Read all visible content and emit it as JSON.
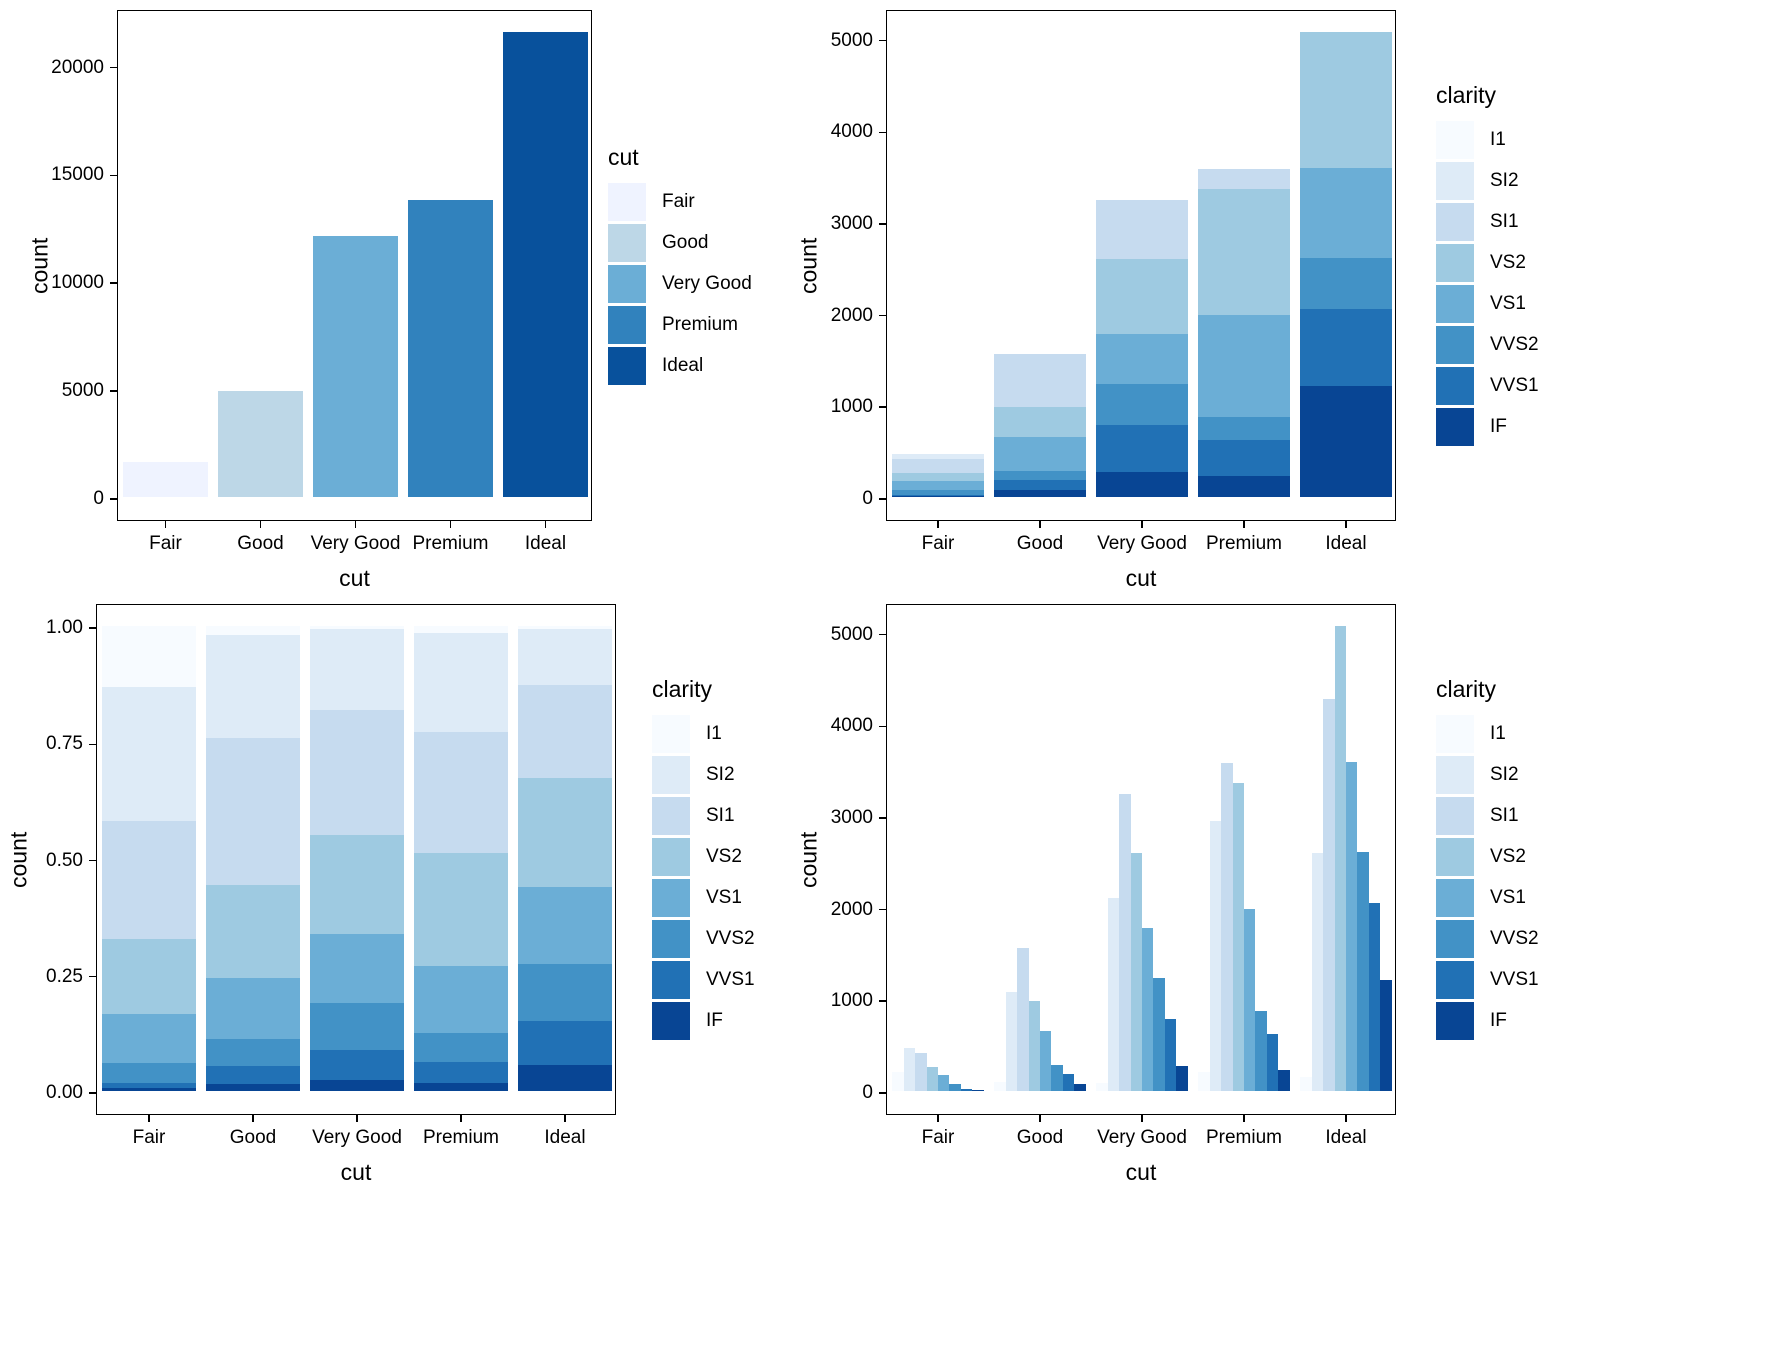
{
  "figure": {
    "background": "#FFFFFF",
    "description": "2x2 grid of bar charts of diamond counts by cut and clarity"
  },
  "palette": {
    "cut_blues_5": [
      "#EFF3FF",
      "#BDD7E7",
      "#6BAED6",
      "#3182BD",
      "#08519C"
    ],
    "clarity_blues_8": [
      "#F7FBFF",
      "#DEEBF7",
      "#C6DBEF",
      "#9ECAE1",
      "#6BAED6",
      "#4292C6",
      "#2171B5",
      "#084594"
    ]
  },
  "chart_data": [
    {
      "type": "bar",
      "panel_position": "top-left",
      "xlabel": "cut",
      "ylabel": "count",
      "legend_title": "cut",
      "legend_position": "right",
      "grid": false,
      "categories": [
        "Fair",
        "Good",
        "Very Good",
        "Premium",
        "Ideal"
      ],
      "values": [
        1610,
        4906,
        12082,
        13791,
        21551
      ],
      "colors": [
        "#EFF3FF",
        "#BDD7E7",
        "#6BAED6",
        "#3182BD",
        "#08519C"
      ],
      "y_data_max": 21551,
      "ylim": [
        0,
        21551
      ],
      "y_ticks": [
        {
          "value": 0,
          "label": "0"
        },
        {
          "value": 5000,
          "label": "5000"
        },
        {
          "value": 10000,
          "label": "10000"
        },
        {
          "value": 15000,
          "label": "15000"
        },
        {
          "value": 20000,
          "label": "20000"
        }
      ]
    },
    {
      "type": "overlay",
      "panel_position": "top-right",
      "xlabel": "cut",
      "ylabel": "count",
      "legend_title": "clarity",
      "legend_position": "right",
      "grid": false,
      "categories": [
        "Fair",
        "Good",
        "Very Good",
        "Premium",
        "Ideal"
      ],
      "series": [
        {
          "name": "I1",
          "color": "#F7FBFF",
          "values": [
            210,
            96,
            84,
            205,
            146
          ]
        },
        {
          "name": "SI2",
          "color": "#DEEBF7",
          "values": [
            466,
            1081,
            2100,
            2949,
            2598
          ]
        },
        {
          "name": "SI1",
          "color": "#C6DBEF",
          "values": [
            408,
            1560,
            3240,
            3575,
            4282
          ]
        },
        {
          "name": "VS2",
          "color": "#9ECAE1",
          "values": [
            261,
            978,
            2591,
            3357,
            5071
          ]
        },
        {
          "name": "VS1",
          "color": "#6BAED6",
          "values": [
            170,
            648,
            1775,
            1989,
            3589
          ]
        },
        {
          "name": "VVS2",
          "color": "#4292C6",
          "values": [
            69,
            286,
            1235,
            870,
            2606
          ]
        },
        {
          "name": "VVS1",
          "color": "#2171B5",
          "values": [
            17,
            186,
            789,
            616,
            2047
          ]
        },
        {
          "name": "IF",
          "color": "#084594",
          "values": [
            9,
            71,
            268,
            230,
            1212
          ]
        }
      ],
      "y_data_max": 5071,
      "ylim": [
        0,
        5071
      ],
      "y_ticks": [
        {
          "value": 0,
          "label": "0"
        },
        {
          "value": 1000,
          "label": "1000"
        },
        {
          "value": 2000,
          "label": "2000"
        },
        {
          "value": 3000,
          "label": "3000"
        },
        {
          "value": 4000,
          "label": "4000"
        },
        {
          "value": 5000,
          "label": "5000"
        }
      ]
    },
    {
      "type": "fill",
      "panel_position": "bottom-left",
      "xlabel": "cut",
      "ylabel": "count",
      "legend_title": "clarity",
      "legend_position": "right",
      "grid": false,
      "categories": [
        "Fair",
        "Good",
        "Very Good",
        "Premium",
        "Ideal"
      ],
      "series": [
        {
          "name": "I1",
          "color": "#F7FBFF",
          "values": [
            210,
            96,
            84,
            205,
            146
          ]
        },
        {
          "name": "SI2",
          "color": "#DEEBF7",
          "values": [
            466,
            1081,
            2100,
            2949,
            2598
          ]
        },
        {
          "name": "SI1",
          "color": "#C6DBEF",
          "values": [
            408,
            1560,
            3240,
            3575,
            4282
          ]
        },
        {
          "name": "VS2",
          "color": "#9ECAE1",
          "values": [
            261,
            978,
            2591,
            3357,
            5071
          ]
        },
        {
          "name": "VS1",
          "color": "#6BAED6",
          "values": [
            170,
            648,
            1775,
            1989,
            3589
          ]
        },
        {
          "name": "VVS2",
          "color": "#4292C6",
          "values": [
            69,
            286,
            1235,
            870,
            2606
          ]
        },
        {
          "name": "VVS1",
          "color": "#2171B5",
          "values": [
            17,
            186,
            789,
            616,
            2047
          ]
        },
        {
          "name": "IF",
          "color": "#084594",
          "values": [
            9,
            71,
            268,
            230,
            1212
          ]
        }
      ],
      "y_data_max": 1,
      "ylim": [
        0,
        1
      ],
      "y_ticks": [
        {
          "value": 0,
          "label": "0.00"
        },
        {
          "value": 0.25,
          "label": "0.25"
        },
        {
          "value": 0.5,
          "label": "0.50"
        },
        {
          "value": 0.75,
          "label": "0.75"
        },
        {
          "value": 1,
          "label": "1.00"
        }
      ]
    },
    {
      "type": "dodge",
      "panel_position": "bottom-right",
      "xlabel": "cut",
      "ylabel": "count",
      "legend_title": "clarity",
      "legend_position": "right",
      "grid": false,
      "categories": [
        "Fair",
        "Good",
        "Very Good",
        "Premium",
        "Ideal"
      ],
      "series": [
        {
          "name": "I1",
          "color": "#F7FBFF",
          "values": [
            210,
            96,
            84,
            205,
            146
          ]
        },
        {
          "name": "SI2",
          "color": "#DEEBF7",
          "values": [
            466,
            1081,
            2100,
            2949,
            2598
          ]
        },
        {
          "name": "SI1",
          "color": "#C6DBEF",
          "values": [
            408,
            1560,
            3240,
            3575,
            4282
          ]
        },
        {
          "name": "VS2",
          "color": "#9ECAE1",
          "values": [
            261,
            978,
            2591,
            3357,
            5071
          ]
        },
        {
          "name": "VS1",
          "color": "#6BAED6",
          "values": [
            170,
            648,
            1775,
            1989,
            3589
          ]
        },
        {
          "name": "VVS2",
          "color": "#4292C6",
          "values": [
            69,
            286,
            1235,
            870,
            2606
          ]
        },
        {
          "name": "VVS1",
          "color": "#2171B5",
          "values": [
            17,
            186,
            789,
            616,
            2047
          ]
        },
        {
          "name": "IF",
          "color": "#084594",
          "values": [
            9,
            71,
            268,
            230,
            1212
          ]
        }
      ],
      "y_data_max": 5071,
      "ylim": [
        0,
        5071
      ],
      "y_ticks": [
        {
          "value": 0,
          "label": "0"
        },
        {
          "value": 1000,
          "label": "1000"
        },
        {
          "value": 2000,
          "label": "2000"
        },
        {
          "value": 3000,
          "label": "3000"
        },
        {
          "value": 4000,
          "label": "4000"
        },
        {
          "value": 5000,
          "label": "5000"
        }
      ]
    }
  ]
}
